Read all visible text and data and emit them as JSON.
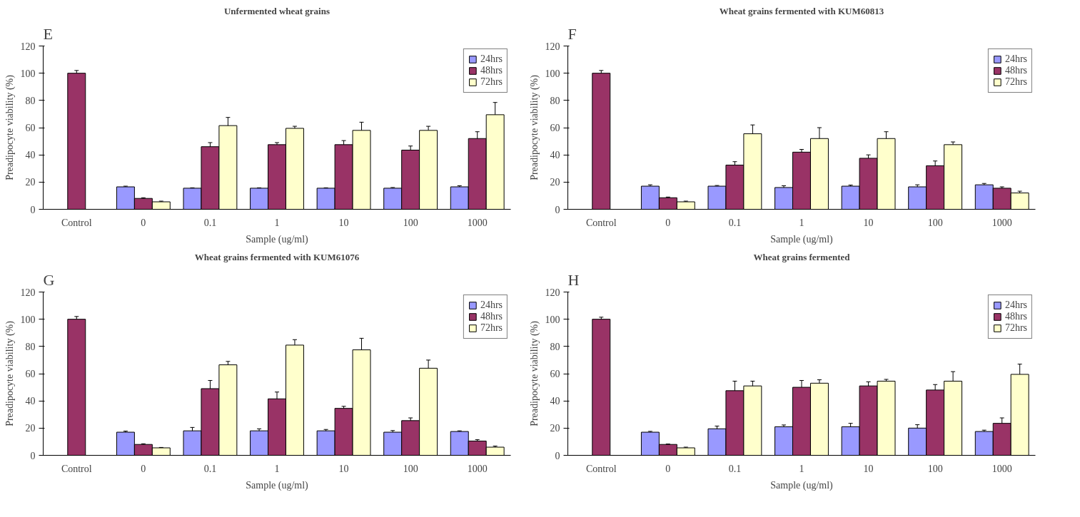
{
  "chart_data": [
    {
      "type": "bar",
      "title": "Unfermented wheat grains",
      "annotations": [
        "E"
      ],
      "xlabel": "Sample (ug/ml)",
      "ylabel": "Preadipocyte viability (%)",
      "categories": [
        "Control",
        "0",
        "0.1",
        "1",
        "10",
        "100",
        "1000"
      ],
      "ylim": [
        0,
        120
      ],
      "yticks": [
        0,
        20,
        40,
        60,
        80,
        100,
        120
      ],
      "grid": false,
      "legend": "top right",
      "series": [
        {
          "name": "24hrs",
          "color": "#9999ff",
          "values": [
            null,
            16.5,
            15.5,
            15.5,
            15.5,
            15.5,
            16.5
          ],
          "errors": [
            null,
            0.5,
            0.3,
            0.3,
            0.3,
            0.5,
            0.8
          ]
        },
        {
          "name": "48hrs",
          "color": "#993366",
          "values": [
            100,
            8,
            46,
            47.5,
            47.5,
            43.5,
            52
          ],
          "errors": [
            2,
            0.5,
            3,
            1.5,
            3,
            3,
            5
          ]
        },
        {
          "name": "72hrs",
          "color": "#ffffcc",
          "values": [
            null,
            5.5,
            61.5,
            59.5,
            58,
            58,
            69.5
          ],
          "errors": [
            null,
            0.5,
            6,
            1.5,
            6,
            3,
            9
          ]
        }
      ]
    },
    {
      "type": "bar",
      "title": "Wheat grains fermented with KUM60813",
      "annotations": [
        "F"
      ],
      "xlabel": "Sample (ug/ml)",
      "ylabel": "Preadipocyte viability (%)",
      "categories": [
        "Control",
        "0",
        "0.1",
        "1",
        "10",
        "100",
        "1000"
      ],
      "ylim": [
        0,
        120
      ],
      "yticks": [
        0,
        20,
        40,
        60,
        80,
        100,
        120
      ],
      "grid": false,
      "legend": "top right",
      "series": [
        {
          "name": "24hrs",
          "color": "#9999ff",
          "values": [
            null,
            17,
            17,
            16,
            17,
            16.5,
            18
          ],
          "errors": [
            null,
            1,
            0.5,
            1.3,
            0.8,
            1.5,
            1
          ]
        },
        {
          "name": "48hrs",
          "color": "#993366",
          "values": [
            100,
            8.5,
            32.5,
            42,
            37.5,
            32,
            15.5
          ],
          "errors": [
            2,
            0.5,
            2.5,
            2,
            2.5,
            3.5,
            1
          ]
        },
        {
          "name": "72hrs",
          "color": "#ffffcc",
          "values": [
            null,
            5.5,
            55.5,
            52,
            52,
            47.5,
            12
          ],
          "errors": [
            null,
            0.5,
            6.5,
            8,
            5,
            2,
            1.3
          ]
        }
      ]
    },
    {
      "type": "bar",
      "title": "Wheat grains fermented with KUM61076",
      "annotations": [
        "G"
      ],
      "xlabel": "Sample (ug/ml)",
      "ylabel": "Preadipocyte viability (%)",
      "categories": [
        "Control",
        "0",
        "0.1",
        "1",
        "10",
        "100",
        "1000"
      ],
      "ylim": [
        0,
        120
      ],
      "yticks": [
        0,
        20,
        40,
        60,
        80,
        100,
        120
      ],
      "grid": false,
      "legend": "top right",
      "series": [
        {
          "name": "24hrs",
          "color": "#9999ff",
          "values": [
            null,
            17,
            18,
            18,
            18,
            17,
            17.5
          ],
          "errors": [
            null,
            0.8,
            2.5,
            1.5,
            1,
            1.2,
            0.5
          ]
        },
        {
          "name": "48hrs",
          "color": "#993366",
          "values": [
            100,
            8,
            49,
            41.5,
            34.5,
            25.5,
            10.5
          ],
          "errors": [
            2,
            0.5,
            6,
            5,
            1.5,
            2,
            1
          ]
        },
        {
          "name": "72hrs",
          "color": "#ffffcc",
          "values": [
            null,
            5.5,
            66.5,
            81,
            77.5,
            64,
            6
          ],
          "errors": [
            null,
            0.3,
            2.5,
            4,
            8.5,
            6,
            0.8
          ]
        }
      ]
    },
    {
      "type": "bar",
      "title": "Wheat grains fermented",
      "annotations": [
        "H"
      ],
      "xlabel": "Sample (ug/ml)",
      "ylabel": "Preadipocyte viability (%)",
      "categories": [
        "Control",
        "0",
        "0.1",
        "1",
        "10",
        "100",
        "1000"
      ],
      "ylim": [
        0,
        120
      ],
      "yticks": [
        0,
        20,
        40,
        60,
        80,
        100,
        120
      ],
      "grid": false,
      "legend": "top right",
      "series": [
        {
          "name": "24hrs",
          "color": "#9999ff",
          "values": [
            null,
            17,
            19.5,
            21,
            21,
            20,
            17.5
          ],
          "errors": [
            null,
            0.6,
            2,
            1.3,
            2.5,
            2.5,
            1
          ]
        },
        {
          "name": "48hrs",
          "color": "#993366",
          "values": [
            100,
            8,
            47.5,
            50,
            51,
            48,
            23.5
          ],
          "errors": [
            1.5,
            0.3,
            7,
            5,
            3,
            4,
            4
          ]
        },
        {
          "name": "72hrs",
          "color": "#ffffcc",
          "values": [
            null,
            5.5,
            51,
            53,
            54.5,
            54.5,
            59.5
          ],
          "errors": [
            null,
            0.5,
            3.5,
            2.5,
            1.3,
            7,
            7.5
          ]
        }
      ]
    }
  ]
}
